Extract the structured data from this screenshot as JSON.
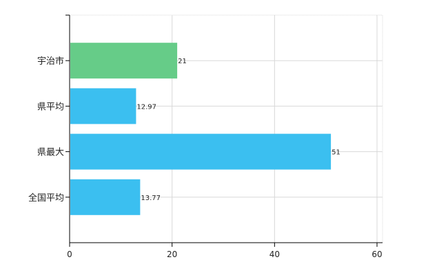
{
  "chart_data": {
    "type": "bar",
    "orientation": "horizontal",
    "categories": [
      "宇治市",
      "県平均",
      "県最大",
      "全国平均"
    ],
    "values": [
      21,
      12.97,
      51,
      13.77
    ],
    "data_labels": [
      "21",
      "12.97",
      "51",
      "13.77"
    ],
    "colors": [
      "#66cc88",
      "#3bbff0",
      "#3bbff0",
      "#3bbff0"
    ],
    "xlim": [
      0,
      60
    ],
    "x_ticks": [
      0,
      20,
      40,
      60
    ],
    "grid": true,
    "title": "",
    "xlabel": "",
    "ylabel": ""
  }
}
